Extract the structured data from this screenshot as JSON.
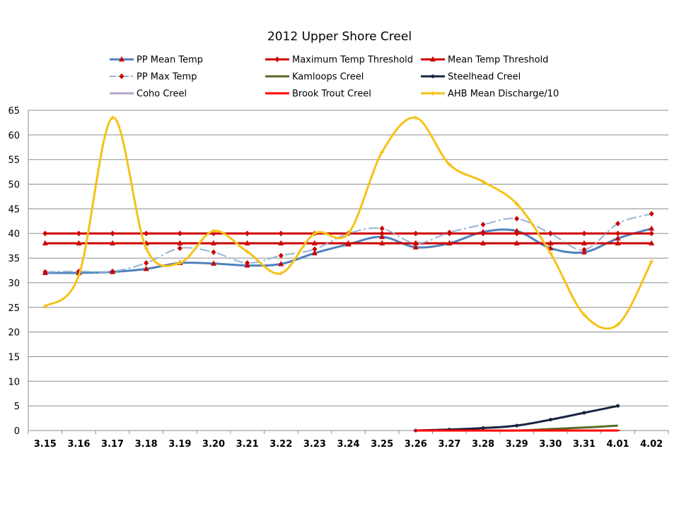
{
  "chart_data": {
    "type": "line",
    "title": "2012 Upper Shore Creel",
    "xlabel": "",
    "ylabel": "",
    "ylim": [
      0,
      65
    ],
    "y_ticks": [
      "0",
      "5",
      "10",
      "15",
      "20",
      "25",
      "30",
      "35",
      "40",
      "45",
      "50",
      "55",
      "60",
      "65"
    ],
    "categories": [
      "3.15",
      "3.16",
      "3.17",
      "3.18",
      "3.19",
      "3.20",
      "3.21",
      "3.22",
      "3.23",
      "3.24",
      "3.25",
      "3.26",
      "3.27",
      "3.28",
      "3.29",
      "3.30",
      "3.31",
      "4.01",
      "4.02"
    ],
    "grid": "horizontal",
    "legend_position": "top",
    "series": [
      {
        "name": "PP Mean Temp",
        "color": "#4f81bd",
        "style": "solid",
        "marker": "triangle",
        "marker_color": "#cc0000",
        "values": [
          32,
          32,
          32.2,
          32.8,
          34,
          33.9,
          33.5,
          33.8,
          36,
          37.8,
          39.3,
          37.2,
          38,
          40.3,
          40.5,
          37,
          36.2,
          39,
          41
        ]
      },
      {
        "name": "Maximum Temp Threshold",
        "color": "#cc0000",
        "style": "solid",
        "marker": "diamond",
        "marker_color": "#cc0000",
        "values": [
          40,
          40,
          40,
          40,
          40,
          40,
          40,
          40,
          40,
          40,
          40,
          40,
          40,
          40,
          40,
          40,
          40,
          40,
          40
        ]
      },
      {
        "name": "Mean Temp Threshold",
        "color": "#cc0000",
        "style": "solid",
        "marker": "triangle",
        "marker_color": "#cc0000",
        "values": [
          38,
          38,
          38,
          38,
          38,
          38,
          38,
          38,
          38,
          38,
          38,
          38,
          38,
          38,
          38,
          38,
          38,
          38,
          38
        ]
      },
      {
        "name": "PP Max Temp",
        "color": "#95b3d7",
        "style": "dashdot",
        "marker": "diamond",
        "marker_color": "#cc0000",
        "values": [
          32.2,
          32.3,
          32.3,
          34,
          37,
          36.2,
          34,
          35.5,
          36.8,
          40,
          41,
          38,
          40.2,
          41.8,
          43,
          40,
          36.7,
          42,
          44
        ]
      },
      {
        "name": "Kamloops Creel",
        "color": "#5a6b2a",
        "style": "solid",
        "marker": "none",
        "values": [
          null,
          null,
          null,
          null,
          null,
          null,
          null,
          null,
          null,
          null,
          null,
          0,
          0,
          0,
          0,
          0.3,
          0.6,
          1,
          null
        ]
      },
      {
        "name": "Steelhead Creel",
        "color": "#17253f",
        "style": "solid",
        "marker": "dot",
        "values": [
          null,
          null,
          null,
          null,
          null,
          null,
          null,
          null,
          null,
          null,
          null,
          0,
          0.2,
          0.5,
          1,
          2.2,
          3.6,
          5,
          null
        ]
      },
      {
        "name": "Coho Creel",
        "color": "#b3a2c7",
        "style": "solid",
        "marker": "none",
        "values": [
          null,
          null,
          null,
          null,
          null,
          null,
          null,
          null,
          null,
          null,
          null,
          0,
          0,
          0,
          0,
          0,
          0,
          0,
          null
        ]
      },
      {
        "name": "Brook Trout Creel",
        "color": "#ff0000",
        "style": "solid",
        "marker": "dash",
        "values": [
          null,
          null,
          null,
          null,
          null,
          null,
          null,
          null,
          null,
          null,
          null,
          0,
          0,
          0,
          0,
          0,
          0,
          0,
          null
        ]
      },
      {
        "name": "AHB Mean Discharge/10",
        "color": "#f5c218",
        "style": "solid",
        "marker": "plus",
        "values": [
          25.2,
          31.5,
          63.5,
          37,
          34,
          40.5,
          36.3,
          31.9,
          40,
          40,
          56.5,
          63.5,
          54,
          50.5,
          46,
          36,
          23.5,
          21.5,
          34.3
        ]
      }
    ]
  }
}
